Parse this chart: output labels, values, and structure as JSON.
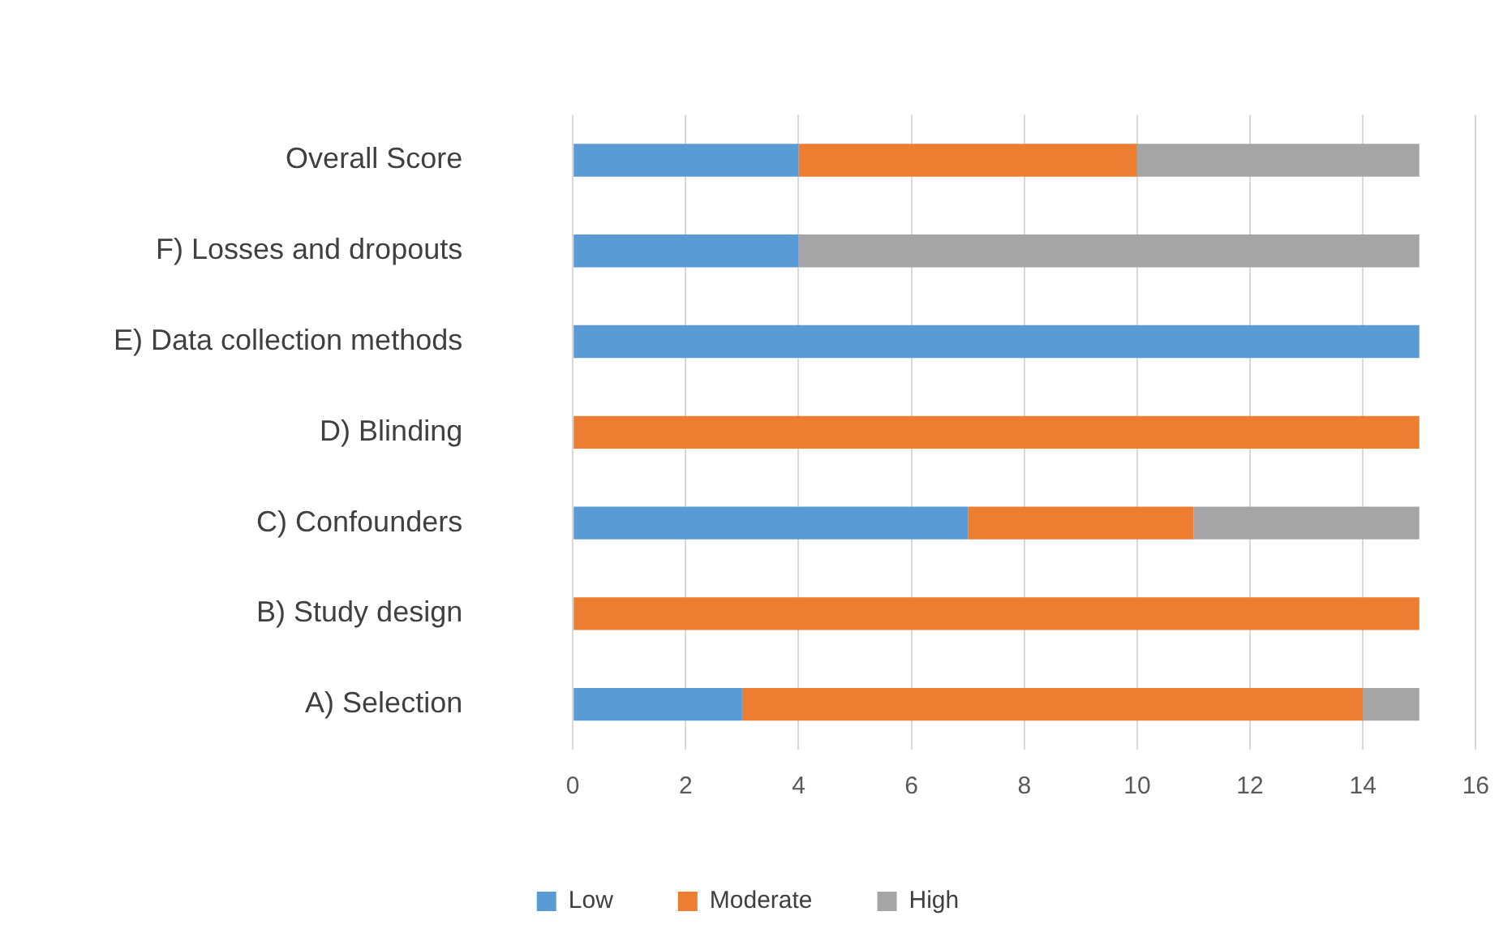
{
  "chart_data": {
    "type": "bar",
    "orientation": "horizontal",
    "stacked": true,
    "categories": [
      "Overall Score",
      "F) Losses and dropouts",
      "E) Data collection methods",
      "D) Blinding",
      "C) Confounders",
      "B) Study design",
      "A) Selection"
    ],
    "series": [
      {
        "name": "Low",
        "color": "#5b9bd5",
        "values": [
          4,
          4,
          15,
          0,
          7,
          0,
          3
        ]
      },
      {
        "name": "Moderate",
        "color": "#ed7d31",
        "values": [
          6,
          0,
          0,
          15,
          4,
          15,
          11
        ]
      },
      {
        "name": "High",
        "color": "#a5a5a5",
        "values": [
          5,
          11,
          0,
          0,
          4,
          0,
          1
        ]
      }
    ],
    "xlim": [
      0,
      16
    ],
    "xticks": [
      0,
      2,
      4,
      6,
      8,
      10,
      12,
      14,
      16
    ],
    "grid": "x",
    "legend": "bottom"
  }
}
